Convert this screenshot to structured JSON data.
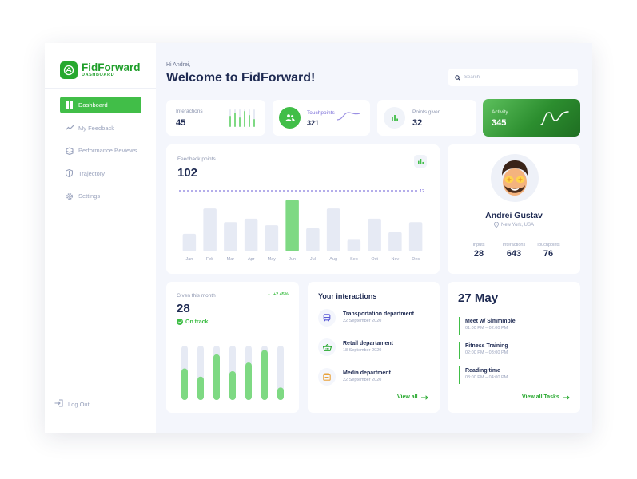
{
  "brand": {
    "name": "FidForward",
    "sub": "DASHBOARD"
  },
  "sidebar": {
    "items": [
      {
        "label": "Dashboard",
        "icon": "grid-icon",
        "active": true
      },
      {
        "label": "My Feedback",
        "icon": "trend-icon",
        "active": false
      },
      {
        "label": "Performance Reviews",
        "icon": "stack-icon",
        "active": false
      },
      {
        "label": "Trajectory",
        "icon": "shield-icon",
        "active": false
      },
      {
        "label": "Settings",
        "icon": "gear-icon",
        "active": false
      }
    ],
    "logout": "Log Out"
  },
  "header": {
    "greeting": "Hi Andrei,",
    "title": "Welcome to FidForward!"
  },
  "search": {
    "placeholder": "Search"
  },
  "stats": {
    "interactions": {
      "label": "Interactions",
      "value": "45"
    },
    "touchpoints": {
      "label": "Touchpoints",
      "value": "321"
    },
    "points": {
      "label": "Points given",
      "value": "32"
    },
    "activity": {
      "label": "Activity",
      "value": "345"
    }
  },
  "chart_data": {
    "type": "bar",
    "label": "Feedback points",
    "total": "102",
    "categories": [
      "Jan",
      "Feb",
      "Mar",
      "Apr",
      "May",
      "Jun",
      "Jul",
      "Aug",
      "Sep",
      "Oct",
      "Nov",
      "Dec"
    ],
    "values": [
      3.5,
      8.5,
      5.8,
      6.5,
      5.2,
      10.2,
      4.6,
      8.5,
      2.3,
      6.5,
      3.8,
      5.8
    ],
    "highlight": "Jun",
    "target": {
      "value": 12,
      "label": "12"
    },
    "ylim": [
      0,
      12
    ],
    "colors": {
      "bar": "#e6eaf4",
      "highlight": "#7ed983",
      "target": "#6a5bd6"
    }
  },
  "profile": {
    "name": "Andrei Gustav",
    "location": "New York, USA",
    "stats": [
      {
        "label": "Inputs",
        "value": "28"
      },
      {
        "label": "Interactions",
        "value": "643"
      },
      {
        "label": "Touchpoints",
        "value": "76"
      }
    ]
  },
  "given": {
    "label": "Given this month",
    "value": "28",
    "change": "+2.45%",
    "status": "On track",
    "bars": [
      0.58,
      0.43,
      0.84,
      0.53,
      0.69,
      0.92,
      0.23
    ]
  },
  "interactions": {
    "title": "Your interactions",
    "items": [
      {
        "name": "Transportation department",
        "date": "22 September 2020",
        "icon": "bus-icon",
        "color": "#5b5bd6"
      },
      {
        "name": "Retail departament",
        "date": "18 September 2020",
        "icon": "basket-icon",
        "color": "#27a82e"
      },
      {
        "name": "Media department",
        "date": "22 September 2020",
        "icon": "media-icon",
        "color": "#e8a23c"
      }
    ],
    "view_all": "View all"
  },
  "tasks": {
    "date": "27 May",
    "items": [
      {
        "name": "Meet w/ Simmmple",
        "time": "01:00 PM – 02:00 PM"
      },
      {
        "name": "Fitness Training",
        "time": "02:00 PM – 03:00 PM"
      },
      {
        "name": "Reading time",
        "time": "03:00 PM – 04:00 PM"
      }
    ],
    "view_all": "View all Tasks"
  }
}
